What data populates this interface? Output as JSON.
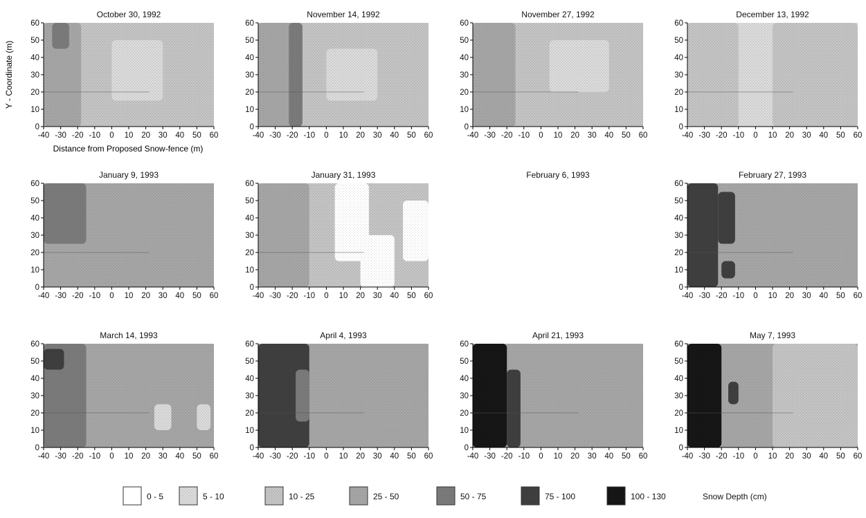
{
  "figure": {
    "y_axis_label": "Y - Coordinate (m)",
    "x_axis_label": "Distance from Proposed Snow-fence (m)"
  },
  "chart_data": {
    "type": "heatmap",
    "value_label": "Snow Depth (cm)",
    "x_ticks": [
      -40,
      -30,
      -20,
      -10,
      0,
      10,
      20,
      30,
      40,
      50,
      60
    ],
    "y_ticks": [
      0,
      10,
      20,
      30,
      40,
      50,
      60
    ],
    "xlim": [
      -40,
      60
    ],
    "ylim": [
      0,
      60
    ],
    "legend": {
      "title": "Snow Depth (cm)",
      "position": "bottom",
      "classes": [
        {
          "label": "0 - 5",
          "color": "#ffffff"
        },
        {
          "label": "5 - 10",
          "color": "#dadada"
        },
        {
          "label": "10 - 25",
          "color": "#c4c4c4"
        },
        {
          "label": "25 - 50",
          "color": "#a6a6a6"
        },
        {
          "label": "50 - 75",
          "color": "#7b7b7b"
        },
        {
          "label": "75 - 100",
          "color": "#3f3f3f"
        },
        {
          "label": "100 - 130",
          "color": "#161616"
        }
      ]
    },
    "panels": [
      {
        "title": "October 30, 1992",
        "row": 0,
        "col": 0,
        "has_data": true,
        "base_class": 2,
        "regions": [
          {
            "x0": -40,
            "x1": -18,
            "y0": 0,
            "y1": 60,
            "class": 3
          },
          {
            "x0": -35,
            "x1": -25,
            "y0": 45,
            "y1": 60,
            "class": 4
          },
          {
            "x0": 0,
            "x1": 30,
            "y0": 15,
            "y1": 50,
            "class": 1
          }
        ]
      },
      {
        "title": "November 14, 1992",
        "row": 0,
        "col": 1,
        "has_data": true,
        "base_class": 2,
        "regions": [
          {
            "x0": -40,
            "x1": -15,
            "y0": 0,
            "y1": 60,
            "class": 3
          },
          {
            "x0": -22,
            "x1": -14,
            "y0": 0,
            "y1": 60,
            "class": 4
          },
          {
            "x0": 0,
            "x1": 30,
            "y0": 15,
            "y1": 45,
            "class": 1
          }
        ]
      },
      {
        "title": "November 27, 1992",
        "row": 0,
        "col": 2,
        "has_data": true,
        "base_class": 2,
        "regions": [
          {
            "x0": -40,
            "x1": -15,
            "y0": 0,
            "y1": 60,
            "class": 3
          },
          {
            "x0": 5,
            "x1": 40,
            "y0": 20,
            "y1": 50,
            "class": 1
          }
        ]
      },
      {
        "title": "December 13, 1992",
        "row": 0,
        "col": 3,
        "has_data": true,
        "base_class": 1,
        "regions": [
          {
            "x0": -40,
            "x1": -10,
            "y0": 0,
            "y1": 60,
            "class": 2
          },
          {
            "x0": 10,
            "x1": 60,
            "y0": 0,
            "y1": 60,
            "class": 2
          }
        ]
      },
      {
        "title": "January 9, 1993",
        "row": 1,
        "col": 0,
        "has_data": true,
        "base_class": 3,
        "regions": [
          {
            "x0": -40,
            "x1": -15,
            "y0": 25,
            "y1": 60,
            "class": 4
          }
        ]
      },
      {
        "title": "January 31, 1993",
        "row": 1,
        "col": 1,
        "has_data": true,
        "base_class": 2,
        "regions": [
          {
            "x0": -40,
            "x1": -10,
            "y0": 0,
            "y1": 60,
            "class": 3
          },
          {
            "x0": 5,
            "x1": 25,
            "y0": 15,
            "y1": 60,
            "class": 0
          },
          {
            "x0": 20,
            "x1": 40,
            "y0": 0,
            "y1": 30,
            "class": 0
          },
          {
            "x0": 45,
            "x1": 60,
            "y0": 15,
            "y1": 50,
            "class": 0
          }
        ]
      },
      {
        "title": "February 6, 1993",
        "row": 1,
        "col": 2,
        "has_data": false,
        "regions": []
      },
      {
        "title": "February 27, 1993",
        "row": 1,
        "col": 3,
        "has_data": true,
        "base_class": 3,
        "regions": [
          {
            "x0": -40,
            "x1": -22,
            "y0": 0,
            "y1": 60,
            "class": 5
          },
          {
            "x0": -22,
            "x1": -12,
            "y0": 25,
            "y1": 55,
            "class": 5
          },
          {
            "x0": -20,
            "x1": -12,
            "y0": 5,
            "y1": 15,
            "class": 5
          }
        ]
      },
      {
        "title": "March 14, 1993",
        "row": 2,
        "col": 0,
        "has_data": true,
        "base_class": 3,
        "regions": [
          {
            "x0": -40,
            "x1": -15,
            "y0": 0,
            "y1": 60,
            "class": 4
          },
          {
            "x0": -40,
            "x1": -28,
            "y0": 45,
            "y1": 57,
            "class": 5
          },
          {
            "x0": 25,
            "x1": 35,
            "y0": 10,
            "y1": 25,
            "class": 1
          },
          {
            "x0": 50,
            "x1": 58,
            "y0": 10,
            "y1": 25,
            "class": 1
          }
        ]
      },
      {
        "title": "April 4, 1993",
        "row": 2,
        "col": 1,
        "has_data": true,
        "base_class": 3,
        "regions": [
          {
            "x0": -40,
            "x1": -10,
            "y0": 0,
            "y1": 60,
            "class": 5
          },
          {
            "x0": -18,
            "x1": -10,
            "y0": 15,
            "y1": 45,
            "class": 4
          }
        ]
      },
      {
        "title": "April 21, 1993",
        "row": 2,
        "col": 2,
        "has_data": true,
        "base_class": 3,
        "regions": [
          {
            "x0": -40,
            "x1": -20,
            "y0": 0,
            "y1": 60,
            "class": 6
          },
          {
            "x0": -20,
            "x1": -12,
            "y0": 0,
            "y1": 45,
            "class": 5
          }
        ]
      },
      {
        "title": "May 7, 1993",
        "row": 2,
        "col": 3,
        "has_data": true,
        "base_class": 3,
        "regions": [
          {
            "x0": -40,
            "x1": -20,
            "y0": 0,
            "y1": 60,
            "class": 6
          },
          {
            "x0": -16,
            "x1": -10,
            "y0": 25,
            "y1": 38,
            "class": 5
          },
          {
            "x0": 10,
            "x1": 60,
            "y0": 0,
            "y1": 60,
            "class": 2
          }
        ]
      }
    ]
  }
}
